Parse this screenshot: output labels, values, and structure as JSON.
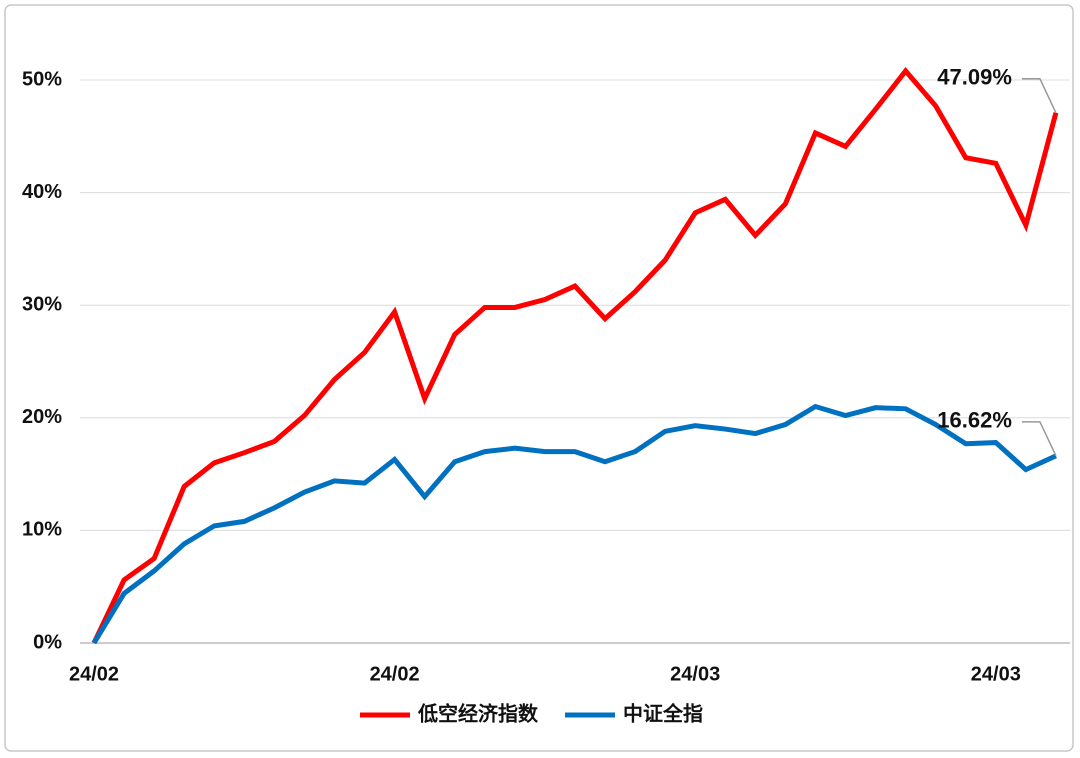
{
  "chart_data": {
    "type": "line",
    "categories": [
      "24/02",
      null,
      null,
      null,
      null,
      null,
      null,
      null,
      null,
      null,
      "24/02",
      null,
      null,
      null,
      null,
      null,
      null,
      null,
      null,
      null,
      "24/03",
      null,
      null,
      null,
      null,
      null,
      null,
      null,
      null,
      null,
      "24/03",
      null,
      null
    ],
    "series": [
      {
        "name": "低空经济指数",
        "color": "#ff0000",
        "values": [
          0,
          5.6,
          7.5,
          13.9,
          16.0,
          16.9,
          17.9,
          20.2,
          23.4,
          25.8,
          29.4,
          21.7,
          27.4,
          29.8,
          29.8,
          30.5,
          31.7,
          28.8,
          31.2,
          34.0,
          38.2,
          39.4,
          36.2,
          39.0,
          45.3,
          44.1,
          47.4,
          50.8,
          47.7,
          43.1,
          42.6,
          37.1,
          47.09
        ],
        "value_labels": [
          null,
          null,
          null,
          null,
          null,
          null,
          null,
          null,
          null,
          null,
          null,
          null,
          null,
          null,
          null,
          null,
          null,
          null,
          null,
          null,
          null,
          null,
          null,
          null,
          null,
          null,
          null,
          null,
          null,
          null,
          null,
          null,
          "47.09%"
        ]
      },
      {
        "name": "中证全指",
        "color": "#0070c0",
        "values": [
          0,
          4.4,
          6.4,
          8.8,
          10.4,
          10.8,
          12.0,
          13.4,
          14.4,
          14.2,
          16.3,
          13.0,
          16.1,
          17.0,
          17.3,
          17.0,
          17.0,
          16.1,
          17.0,
          18.8,
          19.3,
          19.0,
          18.6,
          19.4,
          21.0,
          20.2,
          20.9,
          20.8,
          19.4,
          17.7,
          17.8,
          15.4,
          16.62
        ],
        "value_labels": [
          null,
          null,
          null,
          null,
          null,
          null,
          null,
          null,
          null,
          null,
          null,
          null,
          null,
          null,
          null,
          null,
          null,
          null,
          null,
          null,
          null,
          null,
          null,
          null,
          null,
          null,
          null,
          null,
          null,
          null,
          null,
          null,
          "16.62%"
        ]
      }
    ],
    "ylim": [
      0,
      50
    ],
    "yticks": [
      {
        "value": 0,
        "label": "0%"
      },
      {
        "value": 10,
        "label": "10%"
      },
      {
        "value": 20,
        "label": "20%"
      },
      {
        "value": 30,
        "label": "30%"
      },
      {
        "value": 40,
        "label": "40%"
      },
      {
        "value": 50,
        "label": "50%"
      }
    ],
    "grid": true
  }
}
